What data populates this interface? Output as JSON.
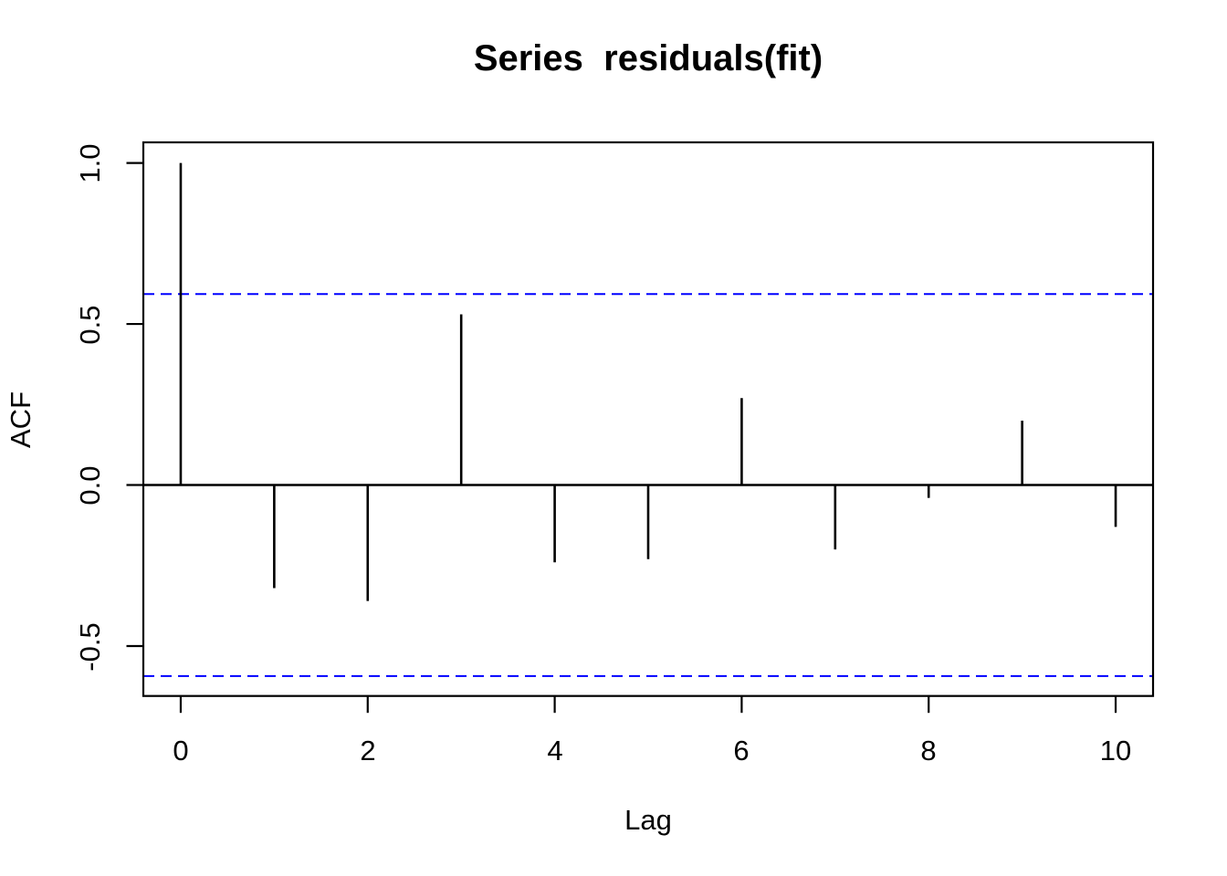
{
  "chart_data": {
    "type": "bar",
    "subtype": "acf-stem-plot",
    "title": "Series  residuals(fit)",
    "xlabel": "Lag",
    "ylabel": "ACF",
    "x": [
      0,
      1,
      2,
      3,
      4,
      5,
      6,
      7,
      8,
      9,
      10
    ],
    "values": [
      1.0,
      -0.32,
      -0.36,
      0.53,
      -0.24,
      -0.23,
      0.27,
      -0.2,
      -0.04,
      0.2,
      -0.13
    ],
    "confidence_interval": {
      "upper": 0.593,
      "lower": -0.593,
      "line_style": "dashed",
      "color": "#0000FF"
    },
    "xticks": [
      0,
      2,
      4,
      6,
      8,
      10
    ],
    "ytick_labels": [
      "1.0",
      "0.5",
      "0.0",
      "-0.5"
    ],
    "xlim": [
      -0.4,
      10.4
    ],
    "ylim": [
      -0.655,
      1.064
    ],
    "grid": false,
    "stem_color": "#000000",
    "axis_color": "#000000",
    "background_color": "#FFFFFF"
  }
}
